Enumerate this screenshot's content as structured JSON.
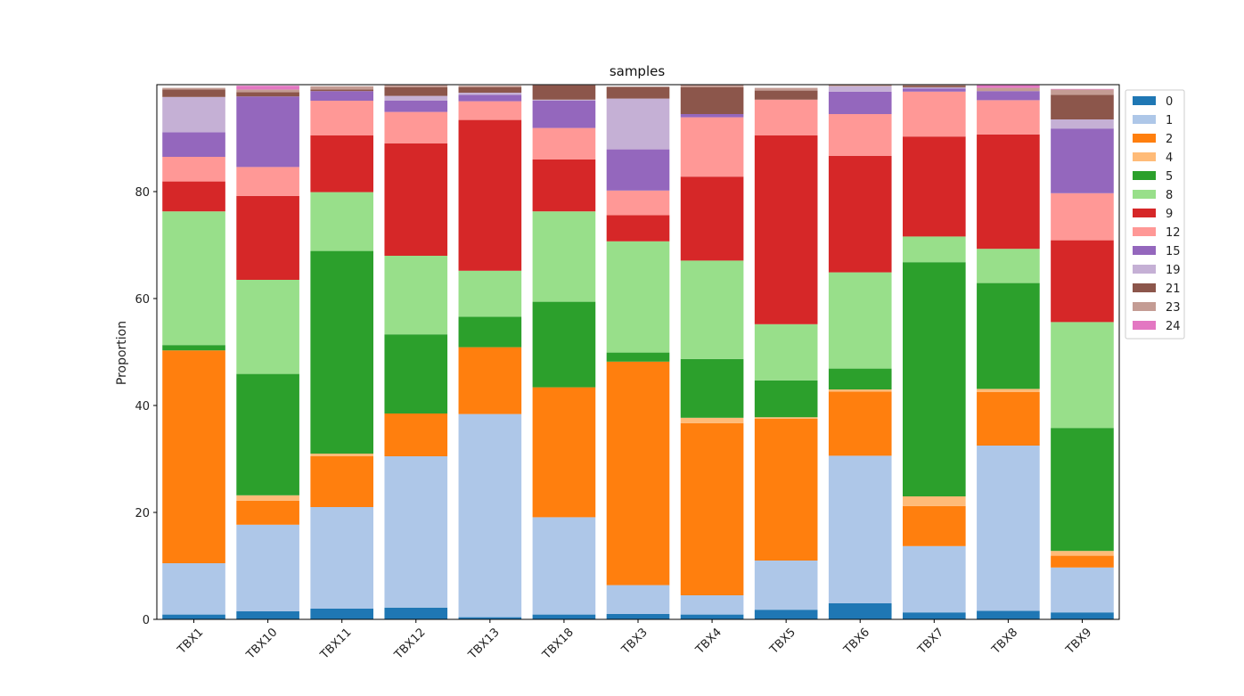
{
  "chart_data": {
    "type": "bar",
    "stacked": true,
    "title": "samples",
    "xlabel": "",
    "ylabel": "Proportion",
    "ylim": [
      0,
      100
    ],
    "yticks": [
      0,
      20,
      40,
      60,
      80
    ],
    "legend_position": "right, outside plot (top-right)",
    "grid": false,
    "categories": [
      "TBX1",
      "TBX10",
      "TBX11",
      "TBX12",
      "TBX13",
      "TBX18",
      "TBX3",
      "TBX4",
      "TBX5",
      "TBX6",
      "TBX7",
      "TBX8",
      "TBX9"
    ],
    "series": [
      {
        "name": "0",
        "color": "#1f77b4",
        "values": [
          0.9,
          1.5,
          2.0,
          2.2,
          0.4,
          0.9,
          1.0,
          0.9,
          1.8,
          3.0,
          1.3,
          1.6,
          1.3
        ]
      },
      {
        "name": "1",
        "color": "#aec7e8",
        "values": [
          9.6,
          16.2,
          19.0,
          28.3,
          38.0,
          18.2,
          5.4,
          3.6,
          9.2,
          27.6,
          12.4,
          30.9,
          8.4
        ]
      },
      {
        "name": "2",
        "color": "#ff7f0e",
        "values": [
          39.8,
          4.5,
          9.5,
          8.0,
          12.5,
          24.3,
          41.8,
          32.2,
          26.5,
          12.0,
          7.5,
          10.0,
          2.2
        ]
      },
      {
        "name": "4",
        "color": "#ffbb78",
        "values": [
          0.0,
          1.0,
          0.5,
          0.0,
          0.0,
          0.0,
          0.0,
          1.0,
          0.3,
          0.4,
          1.8,
          0.6,
          0.9
        ]
      },
      {
        "name": "5",
        "color": "#2ca02c",
        "values": [
          1.0,
          22.7,
          37.9,
          14.8,
          5.7,
          16.0,
          1.7,
          11.0,
          6.9,
          3.9,
          43.8,
          19.8,
          23.0
        ]
      },
      {
        "name": "8",
        "color": "#98df8a",
        "values": [
          25.0,
          17.6,
          11.0,
          14.7,
          8.6,
          16.9,
          20.8,
          18.4,
          10.5,
          18.0,
          4.8,
          6.4,
          19.8
        ]
      },
      {
        "name": "9",
        "color": "#d62728",
        "values": [
          5.6,
          15.7,
          10.6,
          21.0,
          28.2,
          9.7,
          4.9,
          15.7,
          35.3,
          21.8,
          18.7,
          21.4,
          15.3
        ]
      },
      {
        "name": "12",
        "color": "#ff9896",
        "values": [
          4.6,
          5.4,
          6.5,
          5.9,
          3.5,
          5.9,
          4.6,
          11.1,
          6.7,
          7.8,
          8.4,
          6.4,
          8.8
        ]
      },
      {
        "name": "15",
        "color": "#9467bd",
        "values": [
          4.6,
          13.2,
          1.8,
          2.1,
          1.2,
          5.1,
          7.7,
          0.6,
          0.0,
          4.2,
          0.6,
          1.7,
          12.1
        ]
      },
      {
        "name": "19",
        "color": "#c5b0d5",
        "values": [
          6.6,
          0.0,
          0.0,
          0.9,
          0.4,
          0.2,
          9.5,
          0.0,
          0.0,
          1.0,
          0.2,
          0.0,
          1.7
        ]
      },
      {
        "name": "21",
        "color": "#8c564b",
        "values": [
          1.4,
          0.8,
          0.3,
          1.6,
          1.0,
          2.7,
          2.2,
          5.0,
          1.7,
          0.0,
          0.3,
          0.0,
          4.6
        ]
      },
      {
        "name": "23",
        "color": "#c49c94",
        "values": [
          0.3,
          0.5,
          0.6,
          0.4,
          0.3,
          0.1,
          0.0,
          0.5,
          0.5,
          0.3,
          0.2,
          0.6,
          1.0
        ]
      },
      {
        "name": "24",
        "color": "#e377c2",
        "values": [
          0.0,
          0.7,
          0.0,
          0.0,
          0.0,
          0.0,
          0.0,
          0.0,
          0.0,
          0.0,
          0.0,
          0.5,
          0.1
        ]
      }
    ]
  }
}
